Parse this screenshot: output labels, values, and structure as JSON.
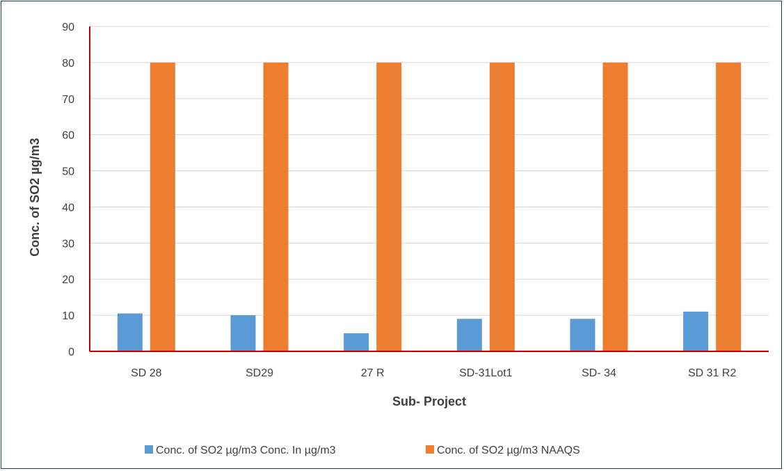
{
  "chart_data": {
    "type": "bar",
    "title": "",
    "xlabel": "Sub- Project",
    "ylabel": "Conc. of  SO2  µg/m3",
    "categories": [
      "SD 28",
      "SD29",
      "27 R",
      "SD-31Lot1",
      "SD- 34",
      "SD 31 R2"
    ],
    "series": [
      {
        "name": "Conc. of  SO2  µg/m3 Conc. In µg/m3",
        "values": [
          10.5,
          10,
          5,
          9,
          9,
          11
        ],
        "color": "#5b9bd5"
      },
      {
        "name": "Conc. of  SO2  µg/m3 NAAQS",
        "values": [
          80,
          80,
          80,
          80,
          80,
          80
        ],
        "color": "#ed7d31"
      }
    ],
    "ylim": [
      0,
      90
    ],
    "yticks": [
      0,
      10,
      20,
      30,
      40,
      50,
      60,
      70,
      80,
      90
    ],
    "grid": true,
    "legend_position": "bottom",
    "gridline_color": "#d9d9d9",
    "axis_color": "#c00000"
  }
}
